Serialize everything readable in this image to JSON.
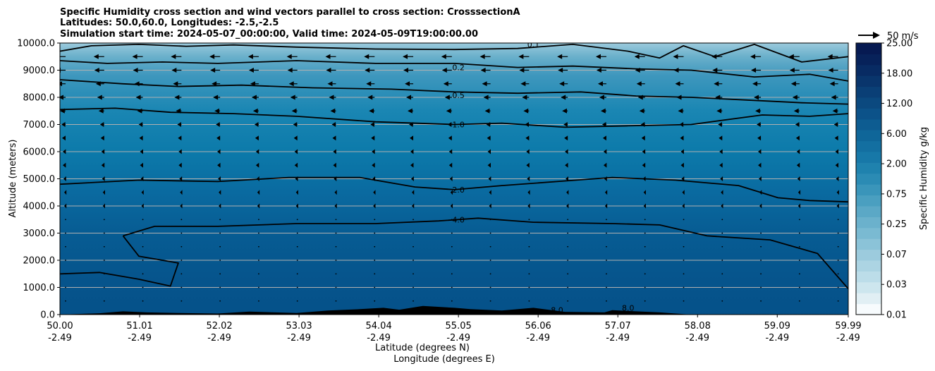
{
  "chart_data": {
    "type": "heatmap",
    "title_lines": [
      "Specific Humidity cross section and wind vectors parallel to cross section: CrosssectionA",
      "Latitudes: 50.0,60.0, Longitudes: -2.5,-2.5",
      "Simulation start time: 2024-05-07_00:00:00, Valid time: 2024-05-09T19:00:00.00"
    ],
    "ylabel": "Altitude (meters)",
    "xlabel_lines": [
      "Latitude (degrees N)",
      "Longitude (degrees E)"
    ],
    "ylim": [
      0,
      10000
    ],
    "xlim": [
      50.0,
      59.99
    ],
    "y_ticks": [
      {
        "value": 0,
        "label": "0.0"
      },
      {
        "value": 1000,
        "label": "1000.0"
      },
      {
        "value": 2000,
        "label": "2000.0"
      },
      {
        "value": 3000,
        "label": "3000.0"
      },
      {
        "value": 4000,
        "label": "4000.0"
      },
      {
        "value": 5000,
        "label": "5000.0"
      },
      {
        "value": 6000,
        "label": "6000.0"
      },
      {
        "value": 7000,
        "label": "7000.0"
      },
      {
        "value": 8000,
        "label": "8000.0"
      },
      {
        "value": 9000,
        "label": "9000.0"
      },
      {
        "value": 10000,
        "label": "10000.0"
      }
    ],
    "x_ticks": [
      {
        "value": 50.0,
        "lat": "50.00",
        "lon": "-2.49"
      },
      {
        "value": 51.01,
        "lat": "51.01",
        "lon": "-2.49"
      },
      {
        "value": 52.02,
        "lat": "52.02",
        "lon": "-2.49"
      },
      {
        "value": 53.03,
        "lat": "53.03",
        "lon": "-2.49"
      },
      {
        "value": 54.04,
        "lat": "54.04",
        "lon": "-2.49"
      },
      {
        "value": 55.05,
        "lat": "55.05",
        "lon": "-2.49"
      },
      {
        "value": 56.06,
        "lat": "56.06",
        "lon": "-2.49"
      },
      {
        "value": 57.07,
        "lat": "57.07",
        "lon": "-2.49"
      },
      {
        "value": 58.08,
        "lat": "58.08",
        "lon": "-2.49"
      },
      {
        "value": 59.09,
        "lat": "59.09",
        "lon": "-2.49"
      },
      {
        "value": 59.99,
        "lat": "59.99",
        "lon": "-2.49"
      }
    ],
    "grid": "horizontal",
    "colorbar": {
      "label": "Specific Humidity g/kg",
      "tick_labels": [
        "0.01",
        "0.03",
        "0.07",
        "0.25",
        "0.75",
        "2.00",
        "6.00",
        "12.00",
        "18.00",
        "25.00"
      ],
      "colors": [
        "#f7fbfd",
        "#e1eff4",
        "#cde6ee",
        "#bcdde9",
        "#acd4e3",
        "#9ccbdd",
        "#8bc3d8",
        "#7abad2",
        "#6bb1cc",
        "#5ba8c6",
        "#4a9fc0",
        "#3a95ba",
        "#2b8bb4",
        "#1f82ae",
        "#1778a8",
        "#136fa1",
        "#0f6699",
        "#0d5c91",
        "#0c5289",
        "#0b497f",
        "#0a3f76",
        "#09356c",
        "#082b63",
        "#07225a",
        "#061a52"
      ]
    },
    "quiver_key": "50 m/s",
    "contour_levels": [
      {
        "label": "0.1",
        "altitude_profile": [
          [
            50.0,
            9700
          ],
          [
            50.4,
            9900
          ],
          [
            51.0,
            9950
          ],
          [
            51.6,
            9880
          ],
          [
            52.2,
            9930
          ],
          [
            53.0,
            9850
          ],
          [
            54.0,
            9780
          ],
          [
            55.0,
            9760
          ],
          [
            55.8,
            9800
          ],
          [
            56.5,
            9950
          ],
          [
            57.2,
            9700
          ],
          [
            57.6,
            9450
          ],
          [
            57.9,
            9900
          ],
          [
            58.3,
            9500
          ],
          [
            58.8,
            9950
          ],
          [
            59.4,
            9300
          ],
          [
            59.99,
            9500
          ]
        ]
      },
      {
        "label": "0.2",
        "altitude_profile": [
          [
            50.0,
            9350
          ],
          [
            50.6,
            9250
          ],
          [
            51.3,
            9300
          ],
          [
            52.0,
            9250
          ],
          [
            53.0,
            9350
          ],
          [
            54.0,
            9250
          ],
          [
            55.0,
            9250
          ],
          [
            55.8,
            9100
          ],
          [
            56.5,
            9150
          ],
          [
            57.3,
            9050
          ],
          [
            58.0,
            9000
          ],
          [
            58.8,
            8750
          ],
          [
            59.5,
            8850
          ],
          [
            59.99,
            8600
          ]
        ]
      },
      {
        "label": "0.5",
        "altitude_profile": [
          [
            50.0,
            8650
          ],
          [
            50.8,
            8500
          ],
          [
            51.5,
            8400
          ],
          [
            52.3,
            8450
          ],
          [
            53.2,
            8350
          ],
          [
            54.2,
            8300
          ],
          [
            55.0,
            8200
          ],
          [
            55.8,
            8150
          ],
          [
            56.6,
            8200
          ],
          [
            57.3,
            8050
          ],
          [
            58.0,
            8000
          ],
          [
            58.7,
            7900
          ],
          [
            59.4,
            7800
          ],
          [
            59.99,
            7750
          ]
        ]
      },
      {
        "label": "1.0",
        "altitude_profile": [
          [
            50.0,
            7550
          ],
          [
            50.7,
            7600
          ],
          [
            51.4,
            7450
          ],
          [
            52.2,
            7400
          ],
          [
            53.0,
            7300
          ],
          [
            54.0,
            7100
          ],
          [
            55.0,
            7000
          ],
          [
            55.6,
            7050
          ],
          [
            56.4,
            6900
          ],
          [
            57.2,
            6950
          ],
          [
            58.0,
            7000
          ],
          [
            58.9,
            7350
          ],
          [
            59.5,
            7300
          ],
          [
            59.99,
            7400
          ]
        ]
      },
      {
        "label": "2.0",
        "altitude_profile": [
          [
            50.0,
            4800
          ],
          [
            51.0,
            4950
          ],
          [
            52.0,
            4900
          ],
          [
            52.9,
            5050
          ],
          [
            53.8,
            5050
          ],
          [
            54.5,
            4700
          ],
          [
            55.0,
            4600
          ],
          [
            55.6,
            4750
          ],
          [
            56.3,
            4900
          ],
          [
            57.0,
            5050
          ],
          [
            57.8,
            4950
          ],
          [
            58.6,
            4750
          ],
          [
            59.1,
            4300
          ],
          [
            59.5,
            4200
          ],
          [
            59.99,
            4150
          ]
        ]
      },
      {
        "label": "4.0",
        "altitude_profile": [
          [
            50.8,
            2900
          ],
          [
            51.2,
            3250
          ],
          [
            52.0,
            3250
          ],
          [
            53.0,
            3350
          ],
          [
            54.0,
            3350
          ],
          [
            54.8,
            3450
          ],
          [
            55.3,
            3550
          ],
          [
            56.0,
            3400
          ],
          [
            57.0,
            3350
          ],
          [
            57.6,
            3300
          ],
          [
            58.2,
            2900
          ],
          [
            59.0,
            2750
          ],
          [
            59.6,
            2250
          ],
          [
            59.99,
            950
          ]
        ]
      },
      {
        "label": "8.0",
        "altitude_profile": [
          [
            50.0,
            1500
          ],
          [
            50.5,
            1550
          ],
          [
            51.0,
            1300
          ],
          [
            51.4,
            1050
          ],
          [
            51.5,
            1900
          ],
          [
            51.0,
            2150
          ],
          [
            50.8,
            2900
          ]
        ]
      }
    ],
    "contour_label_positions": [
      {
        "label": "0.2",
        "lat": 55.05,
        "alt": 9100
      },
      {
        "label": "0.5",
        "lat": 55.05,
        "alt": 8080
      },
      {
        "label": "1.0",
        "lat": 55.05,
        "alt": 7000
      },
      {
        "label": "2.0",
        "lat": 55.05,
        "alt": 4600
      },
      {
        "label": "4.0",
        "lat": 55.05,
        "alt": 3500
      },
      {
        "label": "0.1",
        "lat": 56.0,
        "alt": 9950
      },
      {
        "label": "8.0",
        "lat": 56.3,
        "alt": 170
      },
      {
        "label": "8.0",
        "lat": 57.2,
        "alt": 250
      }
    ],
    "terrain": [
      [
        50.0,
        0
      ],
      [
        50.5,
        50
      ],
      [
        50.8,
        120
      ],
      [
        51.1,
        80
      ],
      [
        51.5,
        60
      ],
      [
        52.0,
        40
      ],
      [
        52.4,
        110
      ],
      [
        53.0,
        60
      ],
      [
        53.4,
        150
      ],
      [
        53.8,
        200
      ],
      [
        54.1,
        250
      ],
      [
        54.3,
        180
      ],
      [
        54.6,
        320
      ],
      [
        55.0,
        250
      ],
      [
        55.2,
        200
      ],
      [
        55.6,
        150
      ],
      [
        56.0,
        250
      ],
      [
        56.4,
        100
      ],
      [
        56.9,
        80
      ],
      [
        57.0,
        160
      ],
      [
        57.3,
        120
      ],
      [
        57.6,
        80
      ],
      [
        58.0,
        0
      ],
      [
        59.99,
        0
      ]
    ],
    "wind_u_profile_ms": [
      {
        "alt": 9500,
        "u": -15
      },
      {
        "alt": 9000,
        "u": -14
      },
      {
        "alt": 8500,
        "u": -12
      },
      {
        "alt": 8000,
        "u": -10
      },
      {
        "alt": 7500,
        "u": -8
      },
      {
        "alt": 7000,
        "u": -6
      },
      {
        "alt": 6500,
        "u": -5
      },
      {
        "alt": 6000,
        "u": -4
      },
      {
        "alt": 5500,
        "u": -4
      },
      {
        "alt": 5000,
        "u": -3
      },
      {
        "alt": 4500,
        "u": -2
      },
      {
        "alt": 4000,
        "u": -2
      },
      {
        "alt": 3500,
        "u": -1
      },
      {
        "alt": 3000,
        "u": -1
      },
      {
        "alt": 2500,
        "u": -1
      },
      {
        "alt": 2000,
        "u": -1
      },
      {
        "alt": 1500,
        "u": -0.5
      },
      {
        "alt": 1000,
        "u": -0.5
      },
      {
        "alt": 500,
        "u": -0.5
      }
    ]
  }
}
